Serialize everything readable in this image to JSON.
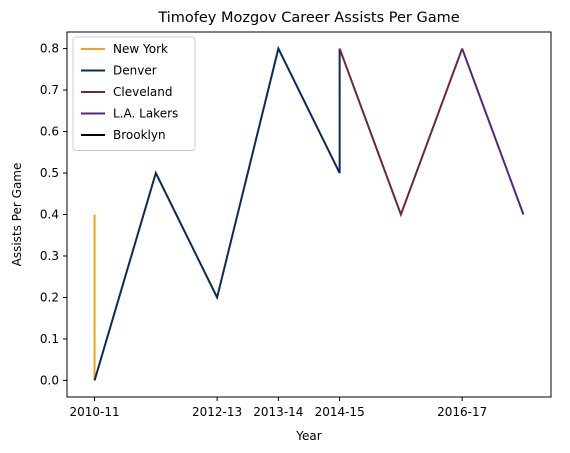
{
  "chart_data": {
    "type": "line",
    "title": "Timofey Mozgov Career Assists Per Game",
    "xlabel": "Year",
    "ylabel": "Assists Per Game",
    "x_ticks": [
      {
        "value": 0,
        "label": "2010-11"
      },
      {
        "value": 2,
        "label": "2012-13"
      },
      {
        "value": 3,
        "label": "2013-14"
      },
      {
        "value": 4,
        "label": "2014-15"
      },
      {
        "value": 6,
        "label": "2016-17"
      }
    ],
    "xlim": [
      -0.45,
      7.45
    ],
    "ylim": [
      -0.04,
      0.84
    ],
    "y_ticks": [
      0.0,
      0.1,
      0.2,
      0.3,
      0.4,
      0.5,
      0.6,
      0.7,
      0.8
    ],
    "grid": false,
    "legend_position": "top-left",
    "series": [
      {
        "name": "New York",
        "color": "#F5A21B",
        "points": [
          [
            0,
            0.4
          ],
          [
            0,
            0.0
          ]
        ]
      },
      {
        "name": "Denver",
        "color": "#0A2A57",
        "points": [
          [
            0,
            0.0
          ],
          [
            1,
            0.5
          ],
          [
            2,
            0.2
          ],
          [
            3,
            0.8
          ],
          [
            4,
            0.5
          ],
          [
            4,
            0.8
          ]
        ]
      },
      {
        "name": "Cleveland",
        "color": "#6F263D",
        "points": [
          [
            4,
            0.8
          ],
          [
            5,
            0.4
          ],
          [
            6,
            0.8
          ]
        ]
      },
      {
        "name": "L.A. Lakers",
        "color": "#552583",
        "points": [
          [
            6,
            0.8
          ],
          [
            7,
            0.4
          ]
        ]
      },
      {
        "name": "Brooklyn",
        "color": "#000000",
        "points": []
      }
    ]
  }
}
